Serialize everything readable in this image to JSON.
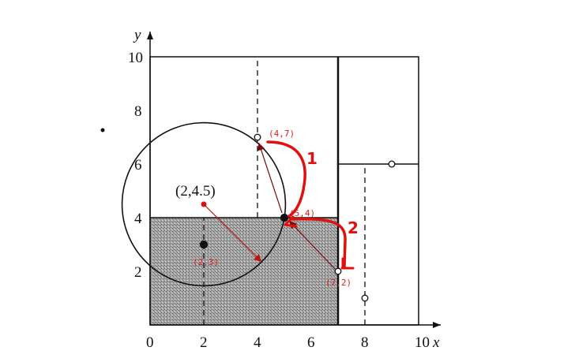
{
  "axes": {
    "x_label": "x",
    "y_label": "y",
    "x_ticks": [
      "0",
      "2",
      "4",
      "6",
      "8",
      "10"
    ],
    "y_ticks": [
      "2",
      "4",
      "6",
      "8",
      "10"
    ],
    "range": [
      0,
      10
    ]
  },
  "points": [
    {
      "x": 2,
      "y": 3,
      "label": "(2,3)",
      "filled": true
    },
    {
      "x": 5,
      "y": 4,
      "label": "(5,4)",
      "filled": true
    },
    {
      "x": 4,
      "y": 7,
      "label": "(4,7)",
      "filled": false
    },
    {
      "x": 7,
      "y": 2,
      "label": "(7,2)",
      "filled": false
    },
    {
      "x": 8,
      "y": 1,
      "label": "",
      "filled": false
    },
    {
      "x": 9,
      "y": 6,
      "label": "",
      "filled": false
    }
  ],
  "query": {
    "x": 2,
    "y": 4.5,
    "label": "(2,4.5)"
  },
  "shaded_region": {
    "x": [
      0,
      7
    ],
    "y": [
      0,
      4
    ]
  },
  "splits": [
    {
      "axis": "x",
      "at": 7,
      "from": 0,
      "to": 10,
      "style": "solid"
    },
    {
      "axis": "y",
      "at": 4,
      "from": 0,
      "to": 7,
      "style": "solid"
    },
    {
      "axis": "y",
      "at": 6,
      "from": 7,
      "to": 10,
      "style": "solid"
    },
    {
      "axis": "x",
      "at": 2,
      "from": 0,
      "to": 4,
      "style": "dashed"
    },
    {
      "axis": "x",
      "at": 4,
      "from": 4,
      "to": 10,
      "style": "dashed"
    },
    {
      "axis": "x",
      "at": 8,
      "from": 0,
      "to": 6,
      "style": "dashed"
    }
  ],
  "annotations": {
    "step1": "1",
    "step2": "2"
  },
  "colors": {
    "annotation": "#e01010",
    "shade": "#9a9a9a",
    "ink": "#111111"
  }
}
